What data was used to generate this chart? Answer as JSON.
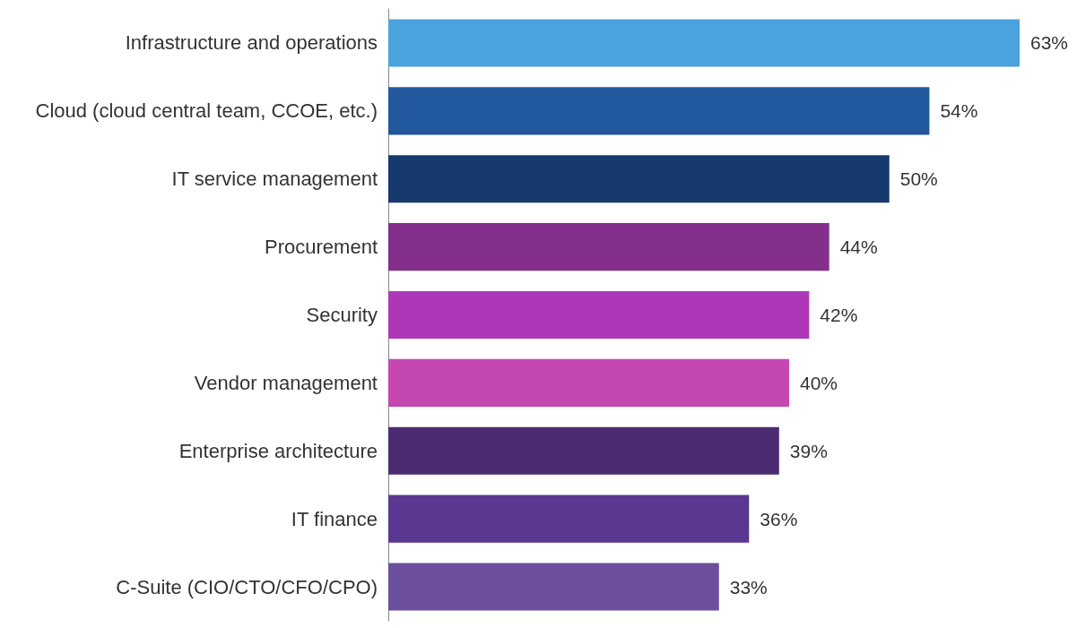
{
  "chart_data": {
    "type": "bar",
    "orientation": "horizontal",
    "categories": [
      "Infrastructure and operations",
      "Cloud (cloud central team, CCOE, etc.)",
      "IT service management",
      "Procurement",
      "Security",
      "Vendor management",
      "Enterprise architecture",
      "IT finance",
      "C-Suite (CIO/CTO/CFO/CPO)"
    ],
    "values": [
      63,
      54,
      50,
      44,
      42,
      40,
      39,
      36,
      33
    ],
    "colors": [
      "#4aa3dc",
      "#22589e",
      "#163a6e",
      "#842f8b",
      "#ae37b8",
      "#c448b0",
      "#4b2b72",
      "#5a3790",
      "#6c4f9c"
    ],
    "value_labels": [
      "63%",
      "54%",
      "50%",
      "44%",
      "42%",
      "40%",
      "39%",
      "36%",
      "33%"
    ]
  }
}
